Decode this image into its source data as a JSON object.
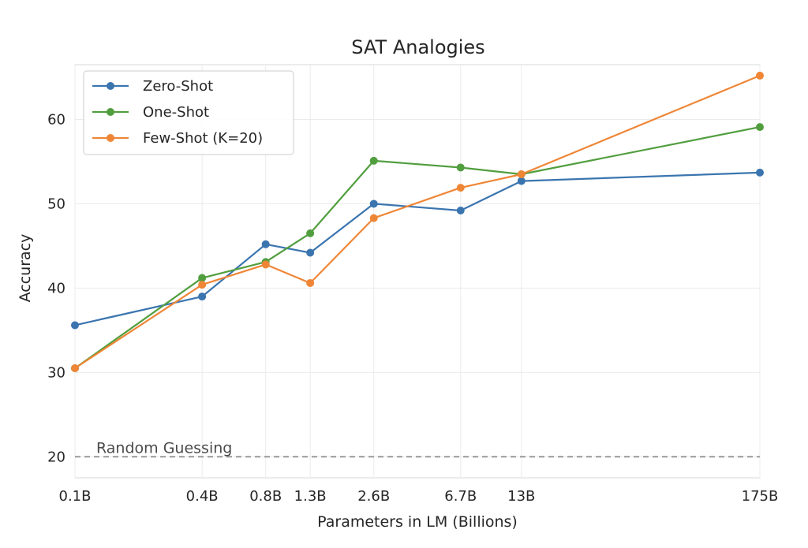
{
  "chart_data": {
    "type": "line",
    "title": "SAT Analogies",
    "xlabel": "Parameters in LM (Billions)",
    "ylabel": "Accuracy",
    "x_scale": "log",
    "x": [
      0.1,
      0.4,
      0.8,
      1.3,
      2.6,
      6.7,
      13,
      175
    ],
    "x_tick_labels": [
      "0.1B",
      "0.4B",
      "0.8B",
      "1.3B",
      "2.6B",
      "6.7B",
      "13B",
      "175B"
    ],
    "y_ticks": [
      20,
      30,
      40,
      50,
      60
    ],
    "ylim": [
      17.5,
      66.5
    ],
    "grid": true,
    "legend_position": "top-left",
    "series": [
      {
        "name": "Zero-Shot",
        "color": "#3b75af",
        "values": [
          35.6,
          39.0,
          45.2,
          44.2,
          50.0,
          49.2,
          52.7,
          53.7
        ]
      },
      {
        "name": "One-Shot",
        "color": "#519e3e",
        "values": [
          30.5,
          41.2,
          43.1,
          46.5,
          55.1,
          54.3,
          53.5,
          59.1
        ]
      },
      {
        "name": "Few-Shot (K=20)",
        "color": "#ef8636",
        "values": [
          30.5,
          40.4,
          42.8,
          40.6,
          48.3,
          51.9,
          53.5,
          65.2
        ]
      }
    ],
    "reference_line": {
      "label": "Random Guessing",
      "y": 20,
      "color": "#999999"
    }
  }
}
